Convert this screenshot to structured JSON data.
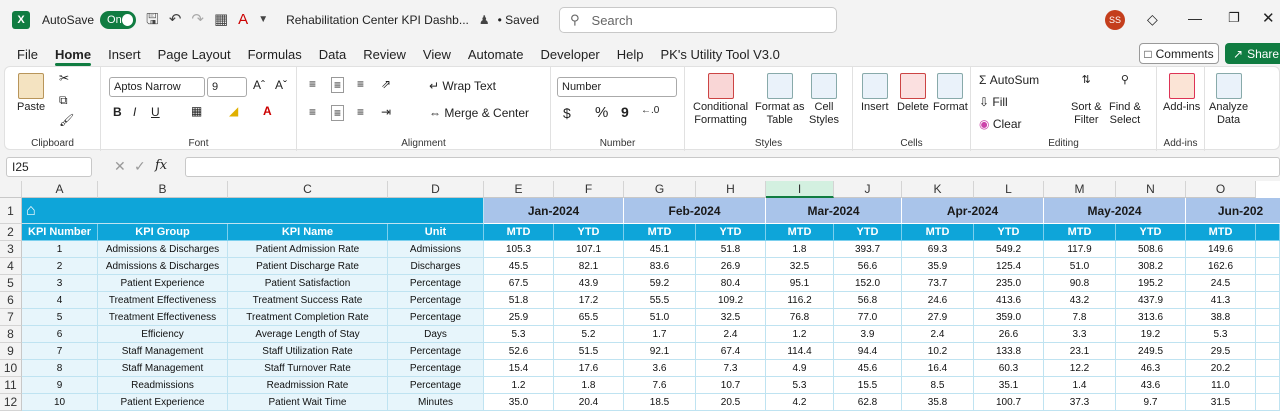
{
  "titlebar": {
    "app_letter": "X",
    "autosave_label": "AutoSave",
    "autosave_state": "On",
    "doc_title": "Rehabilitation Center KPI Dashb...",
    "saved_label": "• Saved",
    "search_placeholder": "Search",
    "user_initials": "SS"
  },
  "menu": {
    "items": [
      "File",
      "Home",
      "Insert",
      "Page Layout",
      "Formulas",
      "Data",
      "Review",
      "View",
      "Automate",
      "Developer",
      "Help",
      "PK's Utility Tool V3.0"
    ],
    "comments_label": "Comments",
    "share_label": "Share"
  },
  "ribbon": {
    "clipboard": {
      "paste": "Paste",
      "label": "Clipboard"
    },
    "font": {
      "name": "Aptos Narrow",
      "size": "9",
      "bold": "B",
      "italic": "I",
      "underline": "U",
      "label": "Font"
    },
    "alignment": {
      "wrap": "Wrap Text",
      "merge": "Merge & Center",
      "label": "Alignment"
    },
    "number": {
      "format": "Number",
      "currency": "$",
      "percent": "%",
      "comma": "9",
      "label": "Number"
    },
    "styles": {
      "conditional": "Conditional",
      "conditional2": "Formatting",
      "format_as": "Format as",
      "format_as2": "Table",
      "cell": "Cell",
      "cell2": "Styles",
      "label": "Styles"
    },
    "cells": {
      "insert": "Insert",
      "delete": "Delete",
      "format": "Format",
      "label": "Cells"
    },
    "editing": {
      "autosum": "AutoSum",
      "fill": "Fill",
      "clear": "Clear",
      "sort": "Sort &",
      "sort2": "Filter",
      "find": "Find &",
      "find2": "Select",
      "label": "Editing"
    },
    "addins": {
      "addins": "Add-ins",
      "label": "Add-ins"
    },
    "analyze": {
      "l1": "Analyze",
      "l2": "Data"
    }
  },
  "formula_bar": {
    "name_box": "I25",
    "fx": "fx"
  },
  "grid": {
    "columns": [
      "A",
      "B",
      "C",
      "D",
      "E",
      "F",
      "G",
      "H",
      "I",
      "J",
      "K",
      "L",
      "M",
      "N",
      "O"
    ],
    "rows": [
      "1",
      "2",
      "3",
      "4",
      "5",
      "6",
      "7",
      "8",
      "9",
      "10",
      "11",
      "12"
    ],
    "months": [
      "Jan-2024",
      "Feb-2024",
      "Mar-2024",
      "Apr-2024",
      "May-2024",
      "Jun-202"
    ],
    "headers": [
      "KPI Number",
      "KPI Group",
      "KPI Name",
      "Unit",
      "MTD",
      "YTD",
      "MTD",
      "YTD",
      "MTD",
      "YTD",
      "MTD",
      "YTD",
      "MTD",
      "YTD",
      "MTD"
    ],
    "data": [
      [
        "1",
        "Admissions & Discharges",
        "Patient Admission Rate",
        "Admissions",
        "105.3",
        "107.1",
        "45.1",
        "51.8",
        "1.8",
        "393.7",
        "69.3",
        "549.2",
        "117.9",
        "508.6",
        "149.6"
      ],
      [
        "2",
        "Admissions & Discharges",
        "Patient Discharge Rate",
        "Discharges",
        "45.5",
        "82.1",
        "83.6",
        "26.9",
        "32.5",
        "56.6",
        "35.9",
        "125.4",
        "51.0",
        "308.2",
        "162.6"
      ],
      [
        "3",
        "Patient Experience",
        "Patient Satisfaction",
        "Percentage",
        "67.5",
        "43.9",
        "59.2",
        "80.4",
        "95.1",
        "152.0",
        "73.7",
        "235.0",
        "90.8",
        "195.2",
        "24.5"
      ],
      [
        "4",
        "Treatment Effectiveness",
        "Treatment Success Rate",
        "Percentage",
        "51.8",
        "17.2",
        "55.5",
        "109.2",
        "116.2",
        "56.8",
        "24.6",
        "413.6",
        "43.2",
        "437.9",
        "41.3"
      ],
      [
        "5",
        "Treatment Effectiveness",
        "Treatment Completion Rate",
        "Percentage",
        "25.9",
        "65.5",
        "51.0",
        "32.5",
        "76.8",
        "77.0",
        "27.9",
        "359.0",
        "7.8",
        "313.6",
        "38.8"
      ],
      [
        "6",
        "Efficiency",
        "Average Length of Stay",
        "Days",
        "5.3",
        "5.2",
        "1.7",
        "2.4",
        "1.2",
        "3.9",
        "2.4",
        "26.6",
        "3.3",
        "19.2",
        "5.3"
      ],
      [
        "7",
        "Staff Management",
        "Staff Utilization Rate",
        "Percentage",
        "52.6",
        "51.5",
        "92.1",
        "67.4",
        "114.4",
        "94.4",
        "10.2",
        "133.8",
        "23.1",
        "249.5",
        "29.5"
      ],
      [
        "8",
        "Staff Management",
        "Staff Turnover Rate",
        "Percentage",
        "15.4",
        "17.6",
        "3.6",
        "7.3",
        "4.9",
        "45.6",
        "16.4",
        "60.3",
        "12.2",
        "46.3",
        "20.2"
      ],
      [
        "9",
        "Readmissions",
        "Readmission Rate",
        "Percentage",
        "1.2",
        "1.8",
        "7.6",
        "10.7",
        "5.3",
        "15.5",
        "8.5",
        "35.1",
        "1.4",
        "43.6",
        "11.0"
      ],
      [
        "10",
        "Patient Experience",
        "Patient Wait Time",
        "Minutes",
        "35.0",
        "20.4",
        "18.5",
        "20.5",
        "4.2",
        "62.8",
        "35.8",
        "100.7",
        "37.3",
        "9.7",
        "31.5"
      ]
    ]
  }
}
